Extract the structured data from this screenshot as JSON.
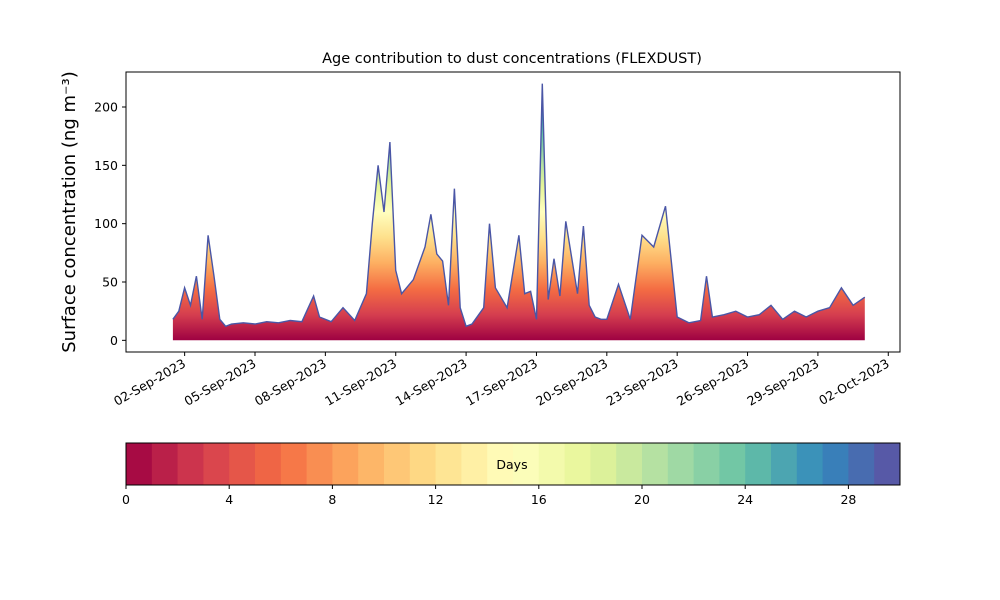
{
  "chart_data": {
    "type": "area",
    "title": "Age contribution to dust concentrations (FLEXDUST)",
    "xlabel": "",
    "ylabel": "Surface concentration (ng m⁻³)",
    "ylim": [
      -10,
      230
    ],
    "yticks": [
      0,
      50,
      100,
      150,
      200
    ],
    "xlim": [
      "2023-08-30T12:00",
      "2023-10-02T12:00"
    ],
    "xticks": [
      "2023-09-02",
      "2023-09-05",
      "2023-09-08",
      "2023-09-11",
      "2023-09-14",
      "2023-09-17",
      "2023-09-20",
      "2023-09-23",
      "2023-09-26",
      "2023-09-29",
      "2023-10-02"
    ],
    "xtick_labels": [
      "02-Sep-2023",
      "05-Sep-2023",
      "08-Sep-2023",
      "11-Sep-2023",
      "14-Sep-2023",
      "17-Sep-2023",
      "20-Sep-2023",
      "23-Sep-2023",
      "26-Sep-2023",
      "29-Sep-2023",
      "02-Oct-2023"
    ],
    "grid": false,
    "stack": "age bins 0 to 30 days, stacked from 0 days (bottom) to 30 days (top)",
    "total": {
      "x": [
        "2023-09-01T12:00",
        "2023-09-01T18:00",
        "2023-09-02T00:00",
        "2023-09-02T06:00",
        "2023-09-02T12:00",
        "2023-09-02T18:00",
        "2023-09-03T00:00",
        "2023-09-03T06:00",
        "2023-09-03T12:00",
        "2023-09-03T18:00",
        "2023-09-04T00:00",
        "2023-09-04T12:00",
        "2023-09-05T00:00",
        "2023-09-05T12:00",
        "2023-09-06T00:00",
        "2023-09-06T12:00",
        "2023-09-07T00:00",
        "2023-09-07T12:00",
        "2023-09-07T18:00",
        "2023-09-08T06:00",
        "2023-09-08T18:00",
        "2023-09-09T06:00",
        "2023-09-09T18:00",
        "2023-09-10T00:00",
        "2023-09-10T06:00",
        "2023-09-10T12:00",
        "2023-09-10T18:00",
        "2023-09-11T00:00",
        "2023-09-11T06:00",
        "2023-09-11T18:00",
        "2023-09-12T06:00",
        "2023-09-12T12:00",
        "2023-09-12T18:00",
        "2023-09-13T00:00",
        "2023-09-13T06:00",
        "2023-09-13T12:00",
        "2023-09-13T18:00",
        "2023-09-14T00:00",
        "2023-09-14T06:00",
        "2023-09-14T18:00",
        "2023-09-15T00:00",
        "2023-09-15T06:00",
        "2023-09-15T18:00",
        "2023-09-16T06:00",
        "2023-09-16T12:00",
        "2023-09-16T18:00",
        "2023-09-17T00:00",
        "2023-09-17T06:00",
        "2023-09-17T12:00",
        "2023-09-17T18:00",
        "2023-09-18T00:00",
        "2023-09-18T06:00",
        "2023-09-18T18:00",
        "2023-09-19T00:00",
        "2023-09-19T06:00",
        "2023-09-19T12:00",
        "2023-09-19T18:00",
        "2023-09-20T00:00",
        "2023-09-20T12:00",
        "2023-09-21T00:00",
        "2023-09-21T12:00",
        "2023-09-22T00:00",
        "2023-09-22T12:00",
        "2023-09-23T00:00",
        "2023-09-23T12:00",
        "2023-09-23T18:00",
        "2023-09-24T00:00",
        "2023-09-24T06:00",
        "2023-09-24T12:00",
        "2023-09-25T00:00",
        "2023-09-25T12:00",
        "2023-09-26T00:00",
        "2023-09-26T12:00",
        "2023-09-27T00:00",
        "2023-09-27T12:00",
        "2023-09-28T00:00",
        "2023-09-28T12:00",
        "2023-09-29T00:00",
        "2023-09-29T12:00",
        "2023-09-30T00:00",
        "2023-09-30T12:00",
        "2023-10-01T00:00"
      ],
      "values": [
        18,
        25,
        45,
        30,
        55,
        18,
        90,
        55,
        18,
        12,
        14,
        15,
        14,
        16,
        15,
        17,
        16,
        38,
        20,
        16,
        28,
        17,
        40,
        100,
        150,
        110,
        170,
        60,
        40,
        52,
        80,
        108,
        74,
        68,
        30,
        130,
        28,
        12,
        14,
        28,
        100,
        45,
        28,
        90,
        40,
        42,
        18,
        220,
        35,
        70,
        38,
        102,
        40,
        98,
        30,
        20,
        18,
        18,
        48,
        18,
        90,
        80,
        115,
        20,
        15,
        16,
        17,
        55,
        20,
        22,
        25,
        20,
        22,
        30,
        18,
        25,
        20,
        25,
        28,
        45,
        30,
        37
      ]
    }
  }
}
